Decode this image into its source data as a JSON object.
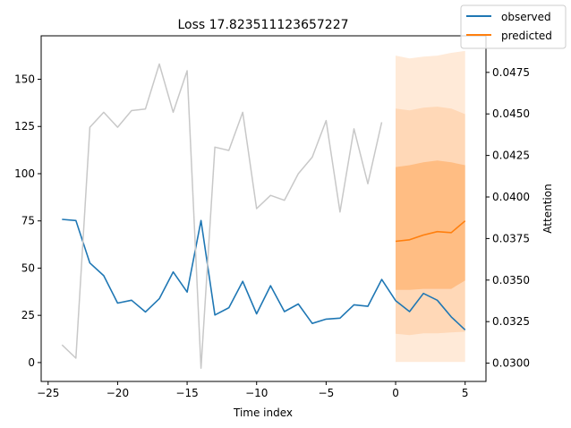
{
  "chart_data": {
    "type": "line",
    "title": "Loss 17.823511123657227",
    "xlabel": "Time index",
    "ylabel": "",
    "y2label": "Attention",
    "xlim": [
      -25.5,
      6.5
    ],
    "ylim": [
      -10,
      173
    ],
    "y2lim": [
      0.0289,
      0.0497
    ],
    "xticks": [
      -25,
      -20,
      -15,
      -10,
      -5,
      0,
      5
    ],
    "yticks": [
      0,
      25,
      50,
      75,
      100,
      125,
      150
    ],
    "y2ticks": [
      "0.0300",
      "0.0325",
      "0.0350",
      "0.0375",
      "0.0400",
      "0.0425",
      "0.0450",
      "0.0475"
    ],
    "grid": false,
    "legend_position": "top-right",
    "colors": {
      "observed": "#1f77b4",
      "predicted": "#ff7f0e",
      "attention": "#c8c8c8",
      "band": "#ff7f0e"
    },
    "series": [
      {
        "name": "observed",
        "x": [
          -24,
          -23,
          -22,
          -21,
          -20,
          -19,
          -18,
          -17,
          -16,
          -15,
          -14,
          -13,
          -12,
          -11,
          -10,
          -9,
          -8,
          -7,
          -6,
          -5,
          -4,
          -3,
          -2,
          -1,
          0,
          1,
          2,
          3,
          4,
          5
        ],
        "values": [
          75.8,
          75.2,
          52.7,
          46.0,
          31.5,
          33.0,
          26.8,
          33.8,
          48.0,
          37.3,
          75.2,
          25.2,
          29.0,
          43.0,
          25.8,
          40.7,
          27.0,
          31.0,
          20.7,
          23.0,
          23.5,
          30.6,
          29.8,
          44.0,
          32.8,
          27.0,
          36.6,
          33.0,
          24.2,
          17.3
        ]
      },
      {
        "name": "predicted",
        "x": [
          0,
          1,
          2,
          3,
          4,
          5
        ],
        "values": [
          64.2,
          65.0,
          67.5,
          69.3,
          68.8,
          75.0
        ]
      },
      {
        "name": "",
        "axis": "y2",
        "x": [
          -24,
          -23,
          -22,
          -21,
          -20,
          -19,
          -18,
          -17,
          -16,
          -15,
          -14,
          -13,
          -12,
          -11,
          -10,
          -9,
          -8,
          -7,
          -6,
          -5,
          -4,
          -3,
          -2,
          -1
        ],
        "values": [
          0.0311,
          0.0303,
          0.0442,
          0.0451,
          0.0442,
          0.0452,
          0.0453,
          0.048,
          0.0451,
          0.0476,
          0.0297,
          0.043,
          0.0428,
          0.0451,
          0.0393,
          0.0401,
          0.0398,
          0.0414,
          0.0424,
          0.0446,
          0.0391,
          0.0441,
          0.0408,
          0.0445
        ]
      }
    ],
    "bands": [
      {
        "x": [
          0,
          1,
          2,
          3,
          4,
          5
        ],
        "lower": [
          0.3,
          0.3,
          0.3,
          0.3,
          0.3,
          0.3
        ],
        "upper": [
          162.5,
          161.0,
          162.0,
          162.5,
          164.0,
          165.0
        ],
        "opacity": 0.16
      },
      {
        "x": [
          0,
          1,
          2,
          3,
          4,
          5
        ],
        "lower": [
          15.2,
          14.5,
          15.5,
          15.5,
          16.0,
          16.3
        ],
        "upper": [
          134.5,
          133.5,
          135.0,
          135.5,
          134.5,
          131.5
        ],
        "opacity": 0.16
      },
      {
        "x": [
          0,
          1,
          2,
          3,
          4,
          5
        ],
        "lower": [
          38.5,
          38.5,
          39.0,
          39.0,
          39.0,
          43.5
        ],
        "upper": [
          103.5,
          104.5,
          106.0,
          107.0,
          106.0,
          104.5
        ],
        "opacity": 0.3
      }
    ],
    "legend": [
      "observed",
      "predicted"
    ]
  }
}
